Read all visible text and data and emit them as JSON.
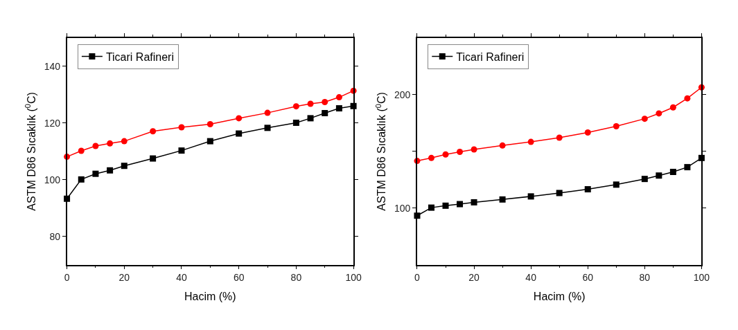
{
  "chart_data": [
    {
      "type": "line",
      "xlabel": "Hacim (%)",
      "ylabel": "ASTM D86 Sıcaklık ($^{0}$C)",
      "xlim": [
        0,
        100
      ],
      "xticks": [
        0,
        20,
        40,
        60,
        80,
        100
      ],
      "ylim": [
        70,
        150
      ],
      "yticks": [
        80,
        100,
        120,
        140
      ],
      "legend": "top left",
      "x": [
        0,
        5,
        10,
        15,
        20,
        30,
        40,
        50,
        60,
        70,
        80,
        85,
        90,
        95,
        100
      ],
      "series": [
        {
          "name": "Ticari Rafineri",
          "color": "#000000",
          "marker": "square",
          "values": [
            93.3,
            100.1,
            102.1,
            103.3,
            104.9,
            107.5,
            110.3,
            113.6,
            116.3,
            118.3,
            120.1,
            121.7,
            123.5,
            125.2,
            126.0
          ]
        },
        {
          "color": "#ff0000",
          "marker": "circle",
          "values": [
            108.1,
            110.2,
            111.9,
            112.8,
            113.6,
            117.1,
            118.5,
            119.6,
            121.7,
            123.6,
            125.9,
            126.8,
            127.4,
            129.1,
            131.4
          ]
        }
      ]
    },
    {
      "type": "line",
      "xlabel": "Hacim (%)",
      "ylabel": "ASTM D86 Sıcaklık ($^{0}$C)",
      "xlim": [
        0,
        100
      ],
      "xticks": [
        0,
        20,
        40,
        60,
        80,
        100
      ],
      "ylim": [
        50,
        250
      ],
      "yticks": [
        100,
        {
          "value": 150,
          "label": null
        },
        200
      ],
      "legend": "top left",
      "x": [
        0,
        5,
        10,
        15,
        20,
        30,
        40,
        50,
        60,
        70,
        80,
        85,
        90,
        95,
        100
      ],
      "series": [
        {
          "name": "Ticari Rafineri",
          "color": "#000000",
          "marker": "square",
          "values": [
            93.3,
            100.4,
            102.1,
            103.5,
            105.1,
            107.6,
            110.3,
            113.3,
            116.6,
            120.7,
            125.7,
            128.7,
            131.9,
            136.1,
            144.2
          ]
        },
        {
          "color": "#ff0000",
          "marker": "circle",
          "values": [
            141.6,
            144.2,
            147.3,
            149.6,
            151.7,
            155.2,
            158.4,
            162.1,
            166.7,
            172.2,
            178.8,
            183.5,
            188.8,
            196.8,
            206.5
          ]
        }
      ]
    }
  ]
}
